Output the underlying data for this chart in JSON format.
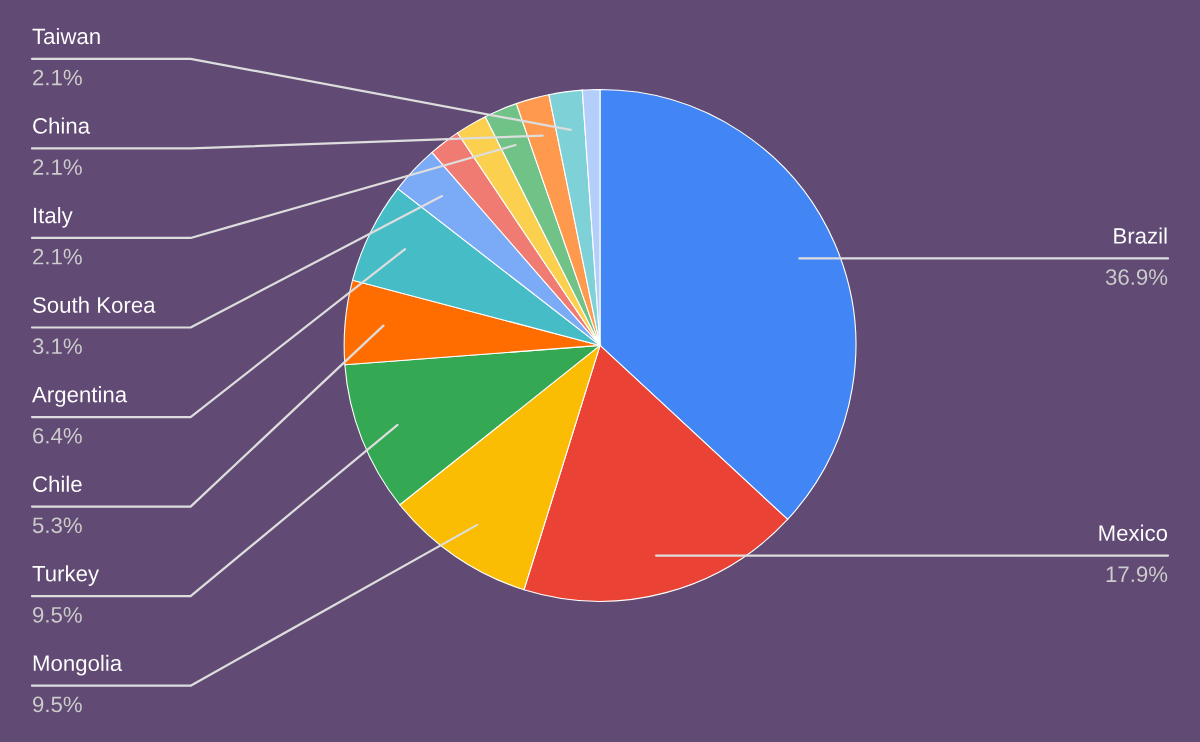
{
  "chart_data": {
    "type": "pie",
    "categories": [
      "Brazil",
      "Mexico",
      "Mongolia",
      "Turkey",
      "Chile",
      "Argentina",
      "South Korea",
      null,
      null,
      "Italy",
      "China",
      "Taiwan",
      null
    ],
    "values": [
      36.9,
      17.9,
      9.5,
      9.5,
      5.3,
      6.4,
      3.1,
      2.0,
      2.0,
      2.1,
      2.1,
      2.1,
      1.1
    ],
    "value_labels": [
      "36.9%",
      "17.9%",
      "9.5%",
      "9.5%",
      "5.3%",
      "6.4%",
      "3.1%",
      null,
      null,
      "2.1%",
      "2.1%",
      "2.1%",
      null
    ],
    "colors": [
      "#4285f4",
      "#ea4335",
      "#fbbc04",
      "#34a853",
      "#ff6d01",
      "#46bdc6",
      "#7baaf7",
      "#f07b72",
      "#fcd04f",
      "#71c287",
      "#ff994d",
      "#7ed1d7",
      "#b3cefb"
    ],
    "legend": false
  }
}
